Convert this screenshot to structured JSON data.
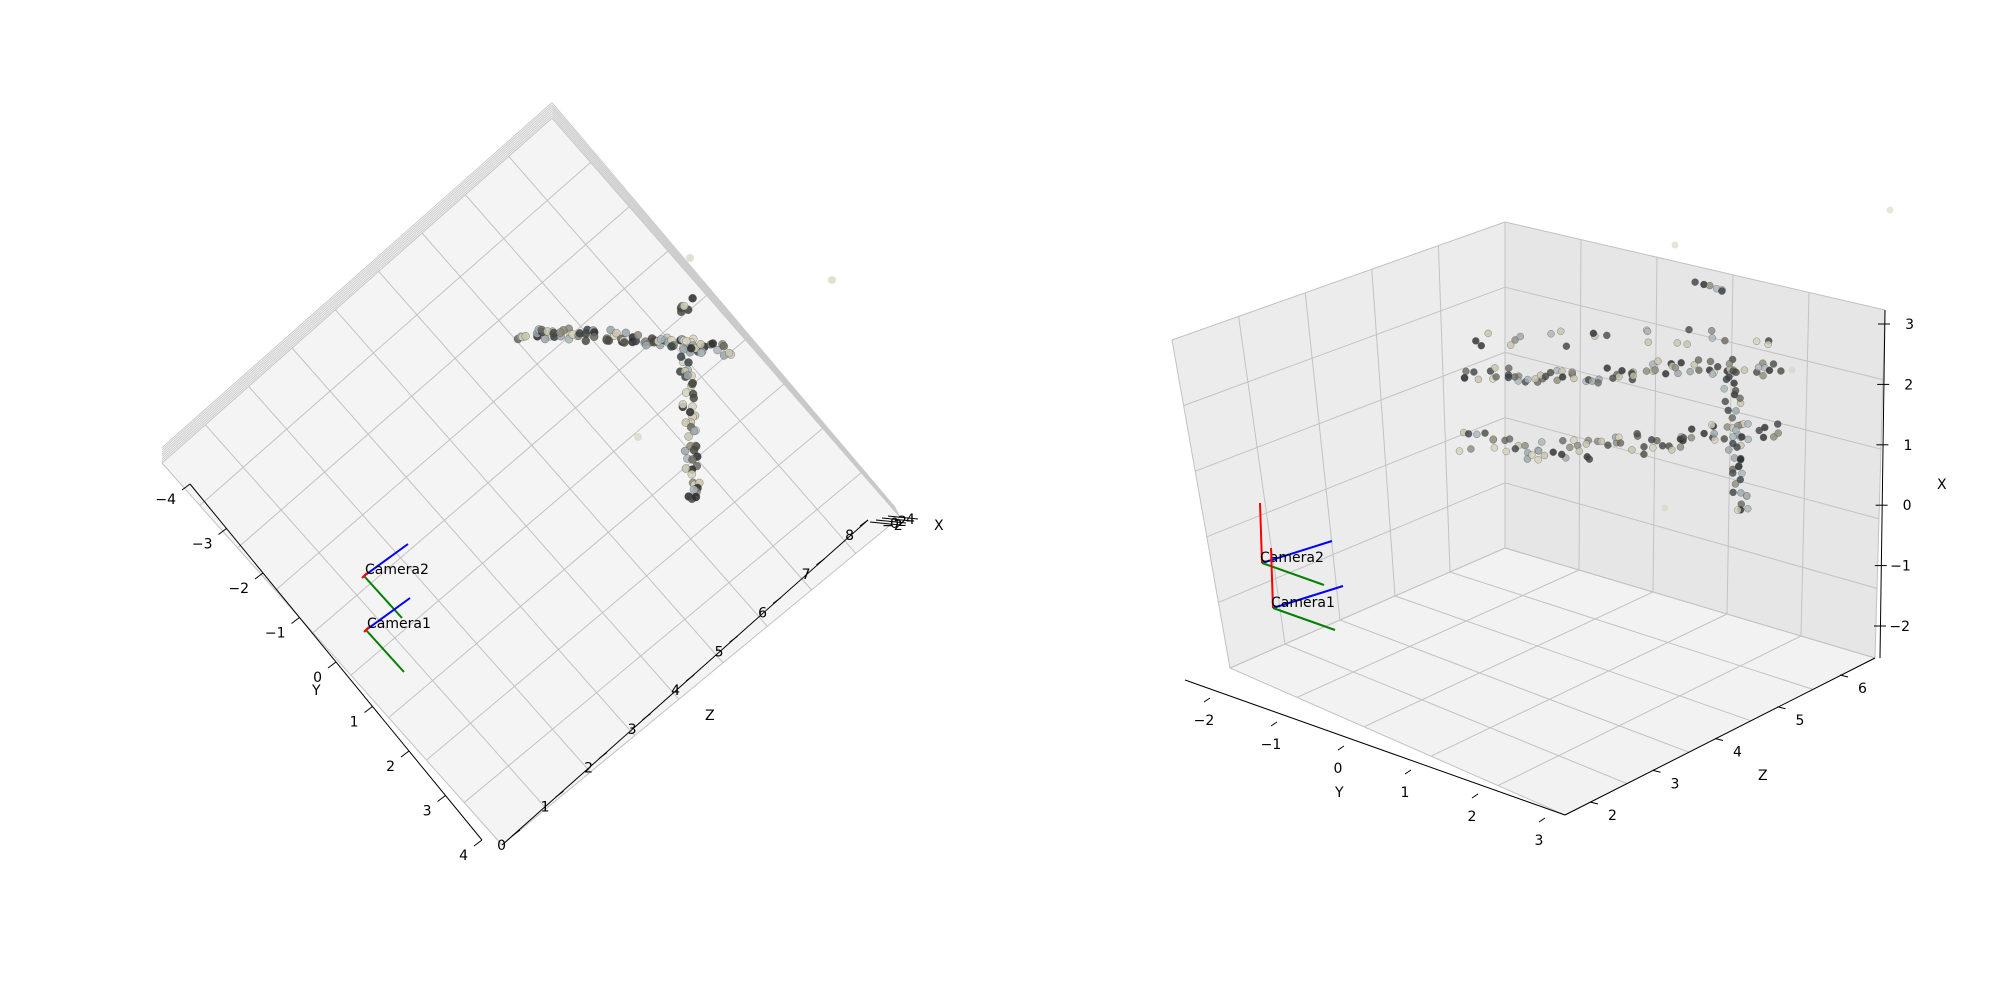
{
  "figure": {
    "background": "#ffffff",
    "pane_color": "#f2f2f2",
    "grid_color": "#b0b0b0",
    "point_colors": [
      "#2b2b2b",
      "#4a4a44",
      "#6b6a60",
      "#8d8b7c",
      "#a9b5bb",
      "#c8c4ac",
      "#d7d3bd",
      "#3a4247",
      "#9aa6ab"
    ],
    "axis_colors": {
      "x": "#ff0000",
      "y": "#008000",
      "z": "#0000ff"
    }
  },
  "chart_data": [
    {
      "type": "scatter3d",
      "view": "top-down",
      "xlabel": "X",
      "ylabel": "Y",
      "zlabel": "Z",
      "y_ticks": [
        "−4",
        "−3",
        "−2",
        "−1",
        "0",
        "1",
        "2",
        "3",
        "4"
      ],
      "z_ticks": [
        "0",
        "1",
        "2",
        "3",
        "4",
        "5",
        "6",
        "7",
        "8"
      ],
      "x_ticks": [
        "−2",
        "0",
        "2",
        "4"
      ],
      "cameras": [
        {
          "label": "Camera2",
          "position": {
            "y": -1.7,
            "z": 0.5
          }
        },
        {
          "label": "Camera1",
          "position": {
            "y": -0.5,
            "z": 0.8
          }
        }
      ]
    },
    {
      "type": "scatter3d",
      "view": "perspective",
      "xlabel": "X",
      "ylabel": "Y",
      "zlabel": "Z",
      "y_ticks": [
        "−2",
        "−1",
        "0",
        "1",
        "2",
        "3"
      ],
      "z_ticks": [
        "2",
        "3",
        "4",
        "5",
        "6"
      ],
      "x_ticks": [
        "3",
        "2",
        "1",
        "0",
        "−1",
        "−2"
      ],
      "cameras": [
        {
          "label": "Camera2",
          "position": {
            "x": -1.0,
            "y": -2.2,
            "z": 1.5
          }
        },
        {
          "label": "Camera1",
          "position": {
            "x": -1.7,
            "y": -1.9,
            "z": 2.2
          }
        }
      ]
    }
  ]
}
